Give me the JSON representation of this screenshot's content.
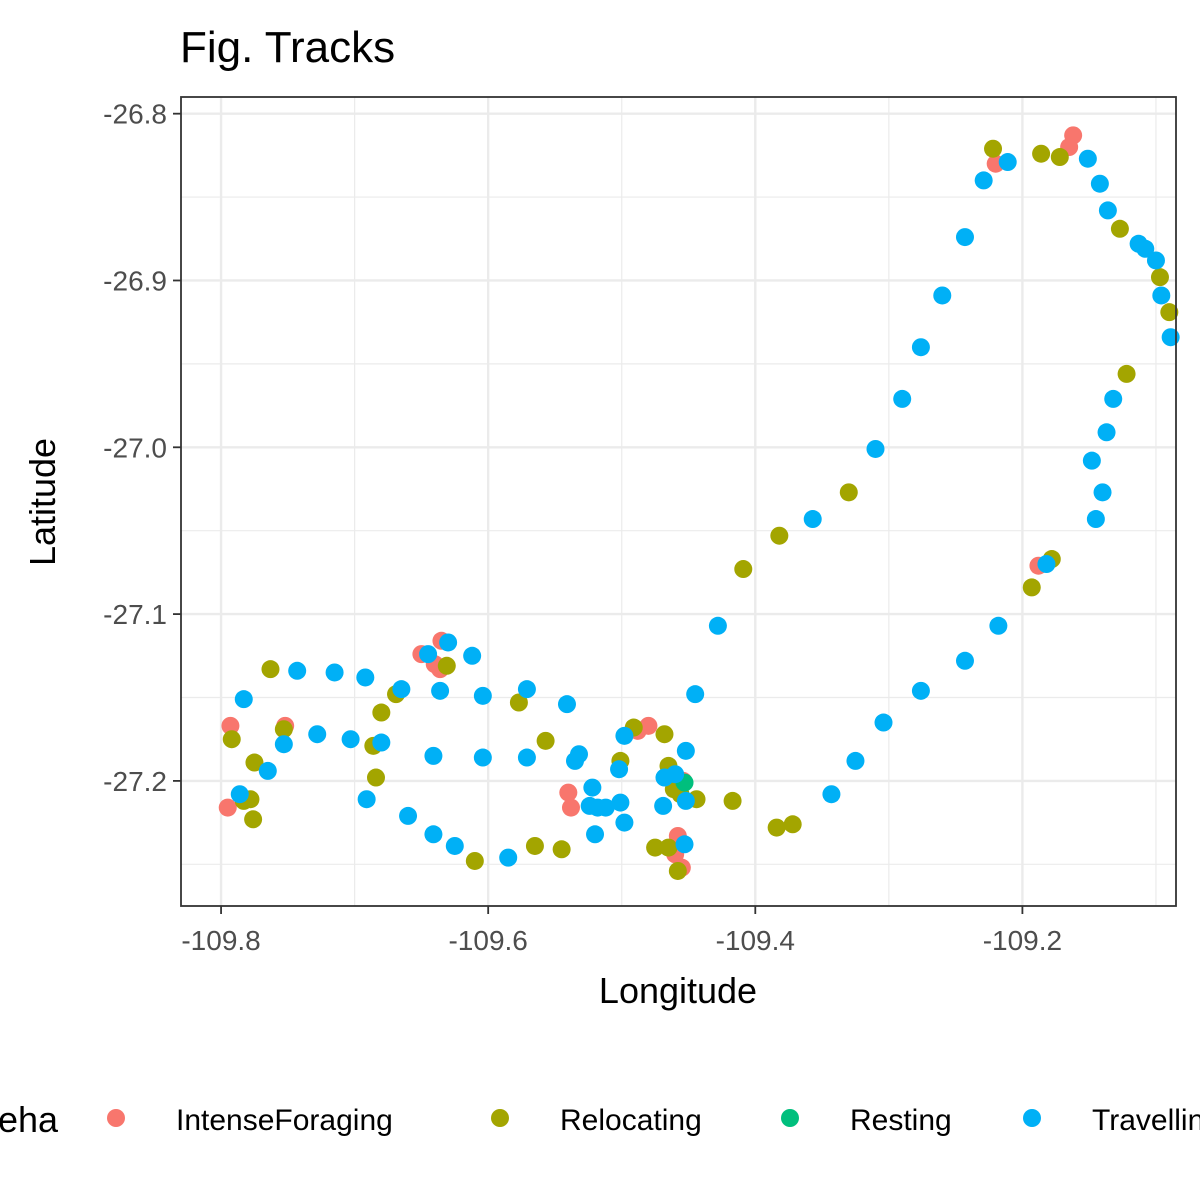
{
  "chart_data": {
    "type": "scatter",
    "title": "Fig. Tracks",
    "xlabel": "Longitude",
    "ylabel": "Latitude",
    "xlim": [
      -109.83,
      -109.085
    ],
    "ylim": [
      -27.275,
      -26.79
    ],
    "xticks": [
      -109.8,
      -109.6,
      -109.4,
      -109.2
    ],
    "xtick_labels": [
      "-109.8",
      "-109.6",
      "-109.4",
      "-109.2"
    ],
    "yticks": [
      -26.8,
      -26.9,
      -27.0,
      -27.1,
      -27.2
    ],
    "ytick_labels": [
      "-26.8",
      "-26.9",
      "-27.0",
      "-27.1",
      "-27.2"
    ],
    "grid": true,
    "legend": {
      "title": "eha",
      "position": "bottom"
    },
    "series": [
      {
        "name": "IntenseForaging",
        "color": "#F8766D",
        "points": [
          [
            -109.162,
            -26.813
          ],
          [
            -109.165,
            -26.82
          ],
          [
            -109.22,
            -26.83
          ],
          [
            -109.188,
            -27.071
          ],
          [
            -109.635,
            -27.116
          ],
          [
            -109.65,
            -27.124
          ],
          [
            -109.64,
            -27.13
          ],
          [
            -109.636,
            -27.133
          ],
          [
            -109.793,
            -27.167
          ],
          [
            -109.752,
            -27.167
          ],
          [
            -109.795,
            -27.216
          ],
          [
            -109.48,
            -27.167
          ],
          [
            -109.488,
            -27.17
          ],
          [
            -109.54,
            -27.207
          ],
          [
            -109.538,
            -27.216
          ],
          [
            -109.454,
            -27.2
          ],
          [
            -109.458,
            -27.233
          ],
          [
            -109.46,
            -27.244
          ],
          [
            -109.455,
            -27.252
          ]
        ]
      },
      {
        "name": "Relocating",
        "color": "#A3A500",
        "points": [
          [
            -109.222,
            -26.821
          ],
          [
            -109.186,
            -26.824
          ],
          [
            -109.172,
            -26.826
          ],
          [
            -109.127,
            -26.869
          ],
          [
            -109.097,
            -26.898
          ],
          [
            -109.09,
            -26.919
          ],
          [
            -109.122,
            -26.956
          ],
          [
            -109.33,
            -27.027
          ],
          [
            -109.382,
            -27.053
          ],
          [
            -109.409,
            -27.073
          ],
          [
            -109.178,
            -27.067
          ],
          [
            -109.193,
            -27.084
          ],
          [
            -109.631,
            -27.131
          ],
          [
            -109.763,
            -27.133
          ],
          [
            -109.669,
            -27.148
          ],
          [
            -109.68,
            -27.159
          ],
          [
            -109.577,
            -27.153
          ],
          [
            -109.792,
            -27.175
          ],
          [
            -109.753,
            -27.169
          ],
          [
            -109.557,
            -27.176
          ],
          [
            -109.686,
            -27.179
          ],
          [
            -109.491,
            -27.168
          ],
          [
            -109.468,
            -27.172
          ],
          [
            -109.501,
            -27.188
          ],
          [
            -109.465,
            -27.191
          ],
          [
            -109.775,
            -27.189
          ],
          [
            -109.684,
            -27.198
          ],
          [
            -109.783,
            -27.212
          ],
          [
            -109.778,
            -27.211
          ],
          [
            -109.776,
            -27.223
          ],
          [
            -109.417,
            -27.212
          ],
          [
            -109.444,
            -27.211
          ],
          [
            -109.456,
            -27.208
          ],
          [
            -109.461,
            -27.205
          ],
          [
            -109.384,
            -27.228
          ],
          [
            -109.372,
            -27.226
          ],
          [
            -109.475,
            -27.24
          ],
          [
            -109.545,
            -27.241
          ],
          [
            -109.565,
            -27.239
          ],
          [
            -109.61,
            -27.248
          ],
          [
            -109.458,
            -27.254
          ],
          [
            -109.465,
            -27.24
          ]
        ]
      },
      {
        "name": "Resting",
        "color": "#00BF7D",
        "points": [
          [
            -109.453,
            -27.201
          ]
        ]
      },
      {
        "name": "Travelling",
        "color": "#00B0F6",
        "points": [
          [
            -109.211,
            -26.829
          ],
          [
            -109.151,
            -26.827
          ],
          [
            -109.142,
            -26.842
          ],
          [
            -109.229,
            -26.84
          ],
          [
            -109.243,
            -26.874
          ],
          [
            -109.136,
            -26.858
          ],
          [
            -109.113,
            -26.878
          ],
          [
            -109.108,
            -26.881
          ],
          [
            -109.1,
            -26.888
          ],
          [
            -109.096,
            -26.909
          ],
          [
            -109.26,
            -26.909
          ],
          [
            -109.276,
            -26.94
          ],
          [
            -109.089,
            -26.934
          ],
          [
            -109.29,
            -26.971
          ],
          [
            -109.132,
            -26.971
          ],
          [
            -109.137,
            -26.991
          ],
          [
            -109.31,
            -27.001
          ],
          [
            -109.148,
            -27.008
          ],
          [
            -109.14,
            -27.027
          ],
          [
            -109.357,
            -27.043
          ],
          [
            -109.145,
            -27.043
          ],
          [
            -109.182,
            -27.07
          ],
          [
            -109.428,
            -27.107
          ],
          [
            -109.218,
            -27.107
          ],
          [
            -109.243,
            -27.128
          ],
          [
            -109.276,
            -27.146
          ],
          [
            -109.304,
            -27.165
          ],
          [
            -109.325,
            -27.188
          ],
          [
            -109.343,
            -27.208
          ],
          [
            -109.612,
            -27.125
          ],
          [
            -109.63,
            -27.117
          ],
          [
            -109.645,
            -27.124
          ],
          [
            -109.743,
            -27.134
          ],
          [
            -109.715,
            -27.135
          ],
          [
            -109.692,
            -27.138
          ],
          [
            -109.665,
            -27.145
          ],
          [
            -109.636,
            -27.146
          ],
          [
            -109.783,
            -27.151
          ],
          [
            -109.604,
            -27.149
          ],
          [
            -109.571,
            -27.145
          ],
          [
            -109.541,
            -27.154
          ],
          [
            -109.445,
            -27.148
          ],
          [
            -109.728,
            -27.172
          ],
          [
            -109.703,
            -27.175
          ],
          [
            -109.68,
            -27.177
          ],
          [
            -109.753,
            -27.178
          ],
          [
            -109.498,
            -27.173
          ],
          [
            -109.641,
            -27.185
          ],
          [
            -109.604,
            -27.186
          ],
          [
            -109.571,
            -27.186
          ],
          [
            -109.532,
            -27.184
          ],
          [
            -109.535,
            -27.188
          ],
          [
            -109.452,
            -27.182
          ],
          [
            -109.765,
            -27.194
          ],
          [
            -109.502,
            -27.193
          ],
          [
            -109.468,
            -27.198
          ],
          [
            -109.46,
            -27.196
          ],
          [
            -109.786,
            -27.208
          ],
          [
            -109.522,
            -27.204
          ],
          [
            -109.691,
            -27.211
          ],
          [
            -109.524,
            -27.215
          ],
          [
            -109.518,
            -27.216
          ],
          [
            -109.512,
            -27.216
          ],
          [
            -109.501,
            -27.213
          ],
          [
            -109.469,
            -27.215
          ],
          [
            -109.452,
            -27.212
          ],
          [
            -109.66,
            -27.221
          ],
          [
            -109.498,
            -27.225
          ],
          [
            -109.641,
            -27.232
          ],
          [
            -109.52,
            -27.232
          ],
          [
            -109.625,
            -27.239
          ],
          [
            -109.585,
            -27.246
          ],
          [
            -109.453,
            -27.238
          ]
        ]
      }
    ]
  }
}
